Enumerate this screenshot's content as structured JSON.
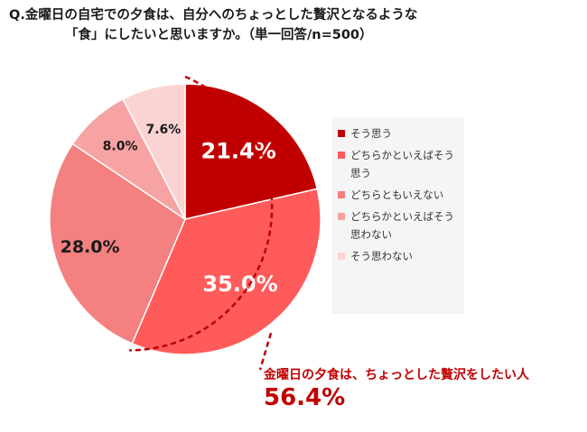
{
  "title": {
    "line1": "Q.金曜日の自宅での夕食は、自分へのちょっとした贅沢となるような",
    "line2": "「食」にしたいと思いますか。（単一回答/n=500）"
  },
  "chart_data": {
    "type": "pie",
    "categories": [
      "そう思う",
      "どちらかといえばそう思う",
      "どちらともいえない",
      "どちらかといえばそう思わない",
      "そう思わない"
    ],
    "values": [
      21.4,
      35.0,
      28.0,
      8.0,
      7.6
    ],
    "value_labels": [
      "21.4%",
      "35.0%",
      "28.0%",
      "8.0%",
      "7.6%"
    ],
    "colors": [
      "#c00000",
      "#ff5b5b",
      "#f48080",
      "#f7a3a3",
      "#fcd3d3"
    ],
    "label_colors": [
      "#ffffff",
      "#ffffff",
      "#1a1a1a",
      "#1a1a1a",
      "#1a1a1a"
    ],
    "legend_position": "right"
  },
  "legend": [
    {
      "label": "そう思う",
      "color": "#c00000"
    },
    {
      "label": "どちらかといえばそう思う",
      "color": "#ff5b5b"
    },
    {
      "label": "どちらともいえない",
      "color": "#f48080"
    },
    {
      "label": "どちらかといえばそう思わない",
      "color": "#f7a3a3"
    },
    {
      "label": "そう思わない",
      "color": "#fcd3d3"
    }
  ],
  "callout": {
    "text": "金曜日の夕食は、ちょっとした贅沢をしたい人",
    "value": "56.4%",
    "color": "#c00000"
  }
}
